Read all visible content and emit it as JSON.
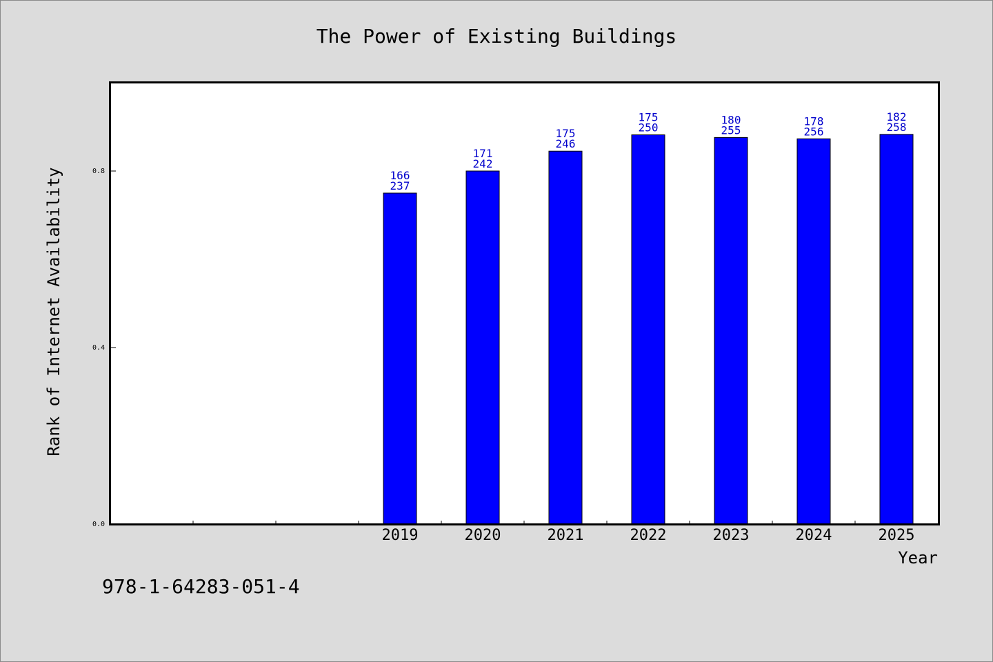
{
  "chart_data": {
    "type": "bar",
    "title": "The Power of Existing Buildings",
    "xlabel": "Year",
    "ylabel": "Rank of Internet Availability",
    "ylim": [
      0,
      1.0
    ],
    "y_ticks": [
      "0.0",
      "0.4",
      "0.8"
    ],
    "x_slots": 10,
    "categories": [
      "2019",
      "2020",
      "2021",
      "2022",
      "2023",
      "2024",
      "2025"
    ],
    "values": [
      0.75,
      0.8,
      0.845,
      0.882,
      0.876,
      0.873,
      0.883
    ],
    "label_top": [
      "166",
      "171",
      "175",
      "175",
      "180",
      "178",
      "182"
    ],
    "label_bottom": [
      "237",
      "242",
      "246",
      "250",
      "255",
      "256",
      "258"
    ],
    "grid": false,
    "bar_color": "#0000ff",
    "label_color": "#0000cc"
  },
  "footer": {
    "isbn": "978-1-64283-051-4"
  }
}
